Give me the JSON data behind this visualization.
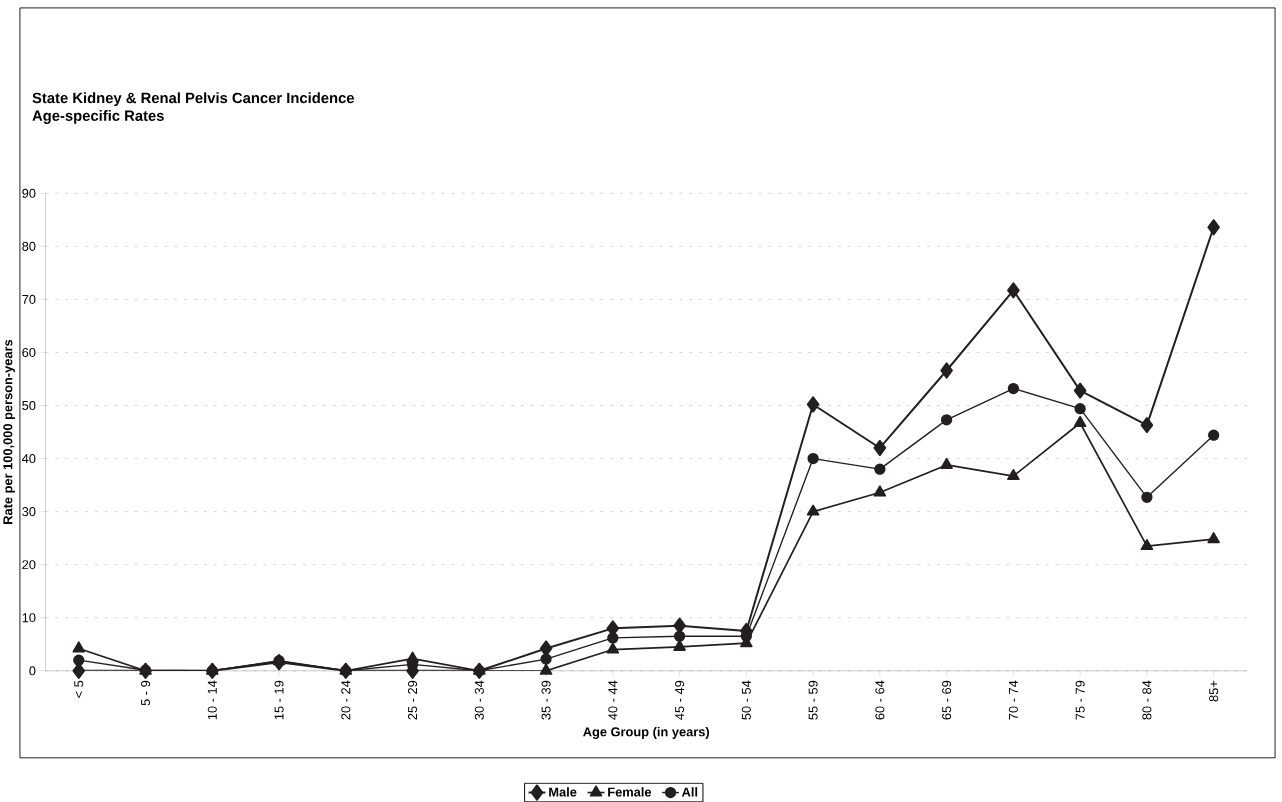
{
  "chart_data": {
    "type": "line",
    "title": "State Kidney & Renal Pelvis Cancer Incidence",
    "subtitle": "Age-specific Rates",
    "xlabel": "Age Group (in years)",
    "ylabel": "Rate per 100,000 person-years",
    "categories": [
      "< 5",
      "5 - 9",
      "10 - 14",
      "15 - 19",
      "20 - 24",
      "25 - 29",
      "30 - 34",
      "35 - 39",
      "40 - 44",
      "45 - 49",
      "50 - 54",
      "55 - 59",
      "60 - 64",
      "65 - 69",
      "70 - 74",
      "75 - 79",
      "80 - 84",
      "85+"
    ],
    "series": [
      {
        "name": "Male",
        "color": "#231f20",
        "marker": "diamond",
        "values": [
          0,
          0,
          0,
          1.6,
          0,
          0,
          0,
          4.2,
          8,
          8.5,
          7.5,
          50.2,
          42,
          56.6,
          71.7,
          52.8,
          46.3,
          83.6
        ]
      },
      {
        "name": "Female",
        "color": "#231f20",
        "marker": "triangle",
        "values": [
          4.2,
          0,
          0,
          1.8,
          0,
          2.3,
          0,
          0,
          4,
          4.5,
          5.2,
          30,
          33.6,
          38.8,
          36.7,
          46.7,
          23.5,
          24.8
        ]
      },
      {
        "name": "All",
        "color": "#231f20",
        "marker": "circle",
        "values": [
          2,
          0.1,
          0,
          1.9,
          0,
          1.2,
          0,
          2.2,
          6.2,
          6.5,
          6.5,
          40,
          38,
          47.3,
          53.2,
          49.4,
          32.7,
          44.4
        ]
      }
    ],
    "ylim": [
      0,
      90
    ],
    "yticks": [
      0,
      10,
      20,
      30,
      40,
      50,
      60,
      70,
      80,
      90
    ],
    "grid": "y",
    "legend": "bottom",
    "line_style": "solid"
  }
}
